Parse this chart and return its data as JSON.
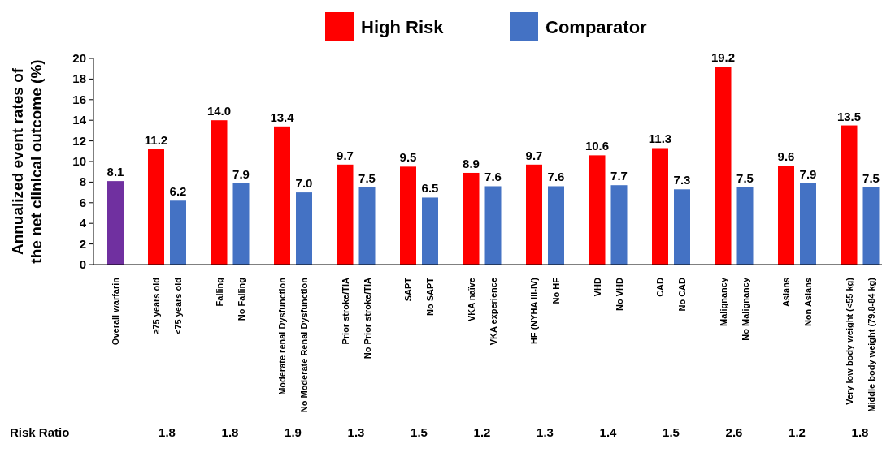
{
  "chart_data": {
    "type": "bar",
    "ylabel": "Annualized event rates of the net clinical outcome (%)",
    "categories": [
      "Overall warfarin",
      "≥75 years old",
      "<75 years old",
      "Falling",
      "No Falling",
      "Moderate renal Dysfunction",
      "No Moderate Renal Dysfunction",
      "Prior stroke/TIA",
      "No Prior stroke/TIA",
      "SAPT",
      "No SAPT",
      "VKA naïve",
      "VKA experience",
      "HF (NYHA III-IV)",
      "No HF",
      "VHD",
      "No VHD",
      "CAD",
      "No CAD",
      "Malignancy",
      "No Malignancy",
      "Asians",
      "Non Asians",
      "Very low body weight (<55 kg)",
      "Middle body weight (79.8-84 kg)"
    ],
    "series": [
      {
        "color": "#7030a0",
        "values": [
          8.1,
          null,
          null,
          null,
          null,
          null,
          null,
          null,
          null,
          null,
          null,
          null,
          null,
          null,
          null,
          null,
          null,
          null,
          null,
          null,
          null,
          null,
          null,
          null,
          null
        ],
        "value_labels": [
          "8.1",
          null,
          null,
          null,
          null,
          null,
          null,
          null,
          null,
          null,
          null,
          null,
          null,
          null,
          null,
          null,
          null,
          null,
          null,
          null,
          null,
          null,
          null,
          null,
          null
        ]
      },
      {
        "name": "High Risk",
        "color": "#ff0000",
        "values": [
          null,
          11.2,
          null,
          14.0,
          null,
          13.4,
          null,
          9.7,
          null,
          9.5,
          null,
          8.9,
          null,
          9.7,
          null,
          10.6,
          null,
          11.3,
          null,
          19.2,
          null,
          9.6,
          null,
          13.5,
          null
        ],
        "value_labels": [
          null,
          "11.2",
          null,
          "14.0",
          null,
          "13.4",
          null,
          "9.7",
          null,
          "9.5",
          null,
          "8.9",
          null,
          "9.7",
          null,
          "10.6",
          null,
          "11.3",
          null,
          "19.2",
          null,
          "9.6",
          null,
          "13.5",
          null
        ]
      },
      {
        "name": "Comparator",
        "color": "#4472c4",
        "values": [
          null,
          null,
          6.2,
          null,
          7.9,
          null,
          7.0,
          null,
          7.5,
          null,
          6.5,
          null,
          7.6,
          null,
          7.6,
          null,
          7.7,
          null,
          7.3,
          null,
          7.5,
          null,
          7.9,
          null,
          7.5
        ],
        "value_labels": [
          null,
          null,
          "6.2",
          null,
          "7.9",
          null,
          "7.0",
          null,
          "7.5",
          null,
          "6.5",
          null,
          "7.6",
          null,
          "7.6",
          null,
          "7.7",
          null,
          "7.3",
          null,
          "7.5",
          null,
          "7.9",
          null,
          "7.5"
        ]
      }
    ],
    "ylim": [
      0,
      20
    ],
    "yticks": [
      0,
      2,
      4,
      6,
      8,
      10,
      12,
      14,
      16,
      18,
      20
    ],
    "grid": false,
    "legend": "top",
    "annotations": [
      "Risk Ratio",
      "1.8",
      "1.8",
      "1.9",
      "1.3",
      "1.5",
      "1.2",
      "1.3",
      "1.4",
      "1.5",
      "2.6",
      "1.2",
      "1.8"
    ]
  }
}
